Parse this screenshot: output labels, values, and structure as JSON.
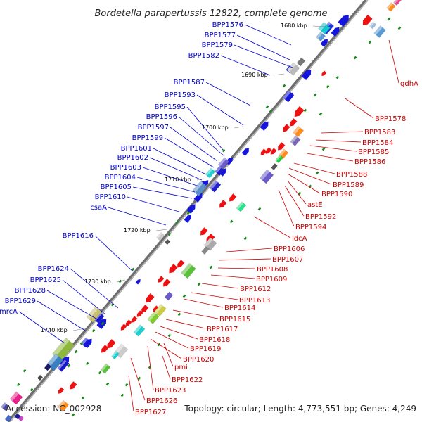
{
  "title": "Bordetella parapertussis 12822, complete genome",
  "footer": {
    "accession": "Accession: NC_002928",
    "summary": "Topology: circular; Length: 4,773,551 bp; Genes: 4,249"
  },
  "ticks": [
    "1680 kbp",
    "1690 kbp",
    "1700 kbp",
    "1710 kbp",
    "1720 kbp",
    "1730 kbp",
    "1740 kbp"
  ],
  "left_genes": [
    "BPP1576",
    "BPP1577",
    "BPP1579",
    "BPP1582",
    "BPP1587",
    "BPP1593",
    "BPP1595",
    "BPP1596",
    "BPP1597",
    "BPP1599",
    "BPP1601",
    "BPP1602",
    "BPP1603",
    "BPP1604",
    "BPP1605",
    "BPP1610",
    "csaA",
    "BPP1616",
    "BPP1624",
    "BPP1625",
    "BPP1628",
    "BPP1629",
    "mrcA"
  ],
  "right_genes": [
    "gdhA",
    "BPP1578",
    "BPP1583",
    "BPP1584",
    "BPP1585",
    "BPP1586",
    "BPP1588",
    "BPP1589",
    "BPP1590",
    "astE",
    "BPP1592",
    "BPP1594",
    "ldcA",
    "BPP1606",
    "BPP1607",
    "BPP1608",
    "BPP1609",
    "BPP1612",
    "BPP1613",
    "BPP1614",
    "BPP1615",
    "BPP1617",
    "BPP1618",
    "BPP1619",
    "BPP1620",
    "pmi",
    "BPP1622",
    "BPP1623",
    "BPP1626",
    "BPP1627"
  ]
}
